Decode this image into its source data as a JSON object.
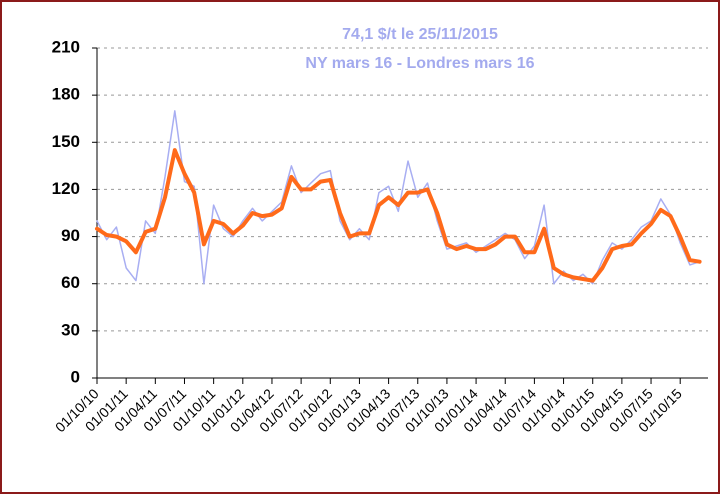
{
  "chart_data": {
    "type": "line",
    "title": "74,1 $/t le 25/11/2015",
    "subtitle": "NY mars 16 - Londres mars 16",
    "categories": [
      "01/10/10",
      null,
      null,
      "01/01/11",
      null,
      null,
      "01/04/11",
      null,
      null,
      "01/07/11",
      null,
      null,
      "01/10/11",
      null,
      null,
      "01/01/12",
      null,
      null,
      "01/04/12",
      null,
      null,
      "01/07/12",
      null,
      null,
      "01/10/12",
      null,
      null,
      "01/01/13",
      null,
      null,
      "01/04/13",
      null,
      null,
      "01/07/13",
      null,
      null,
      "01/10/13",
      null,
      null,
      "01/01/14",
      null,
      null,
      "01/04/14",
      null,
      null,
      "01/07/14",
      null,
      null,
      "01/10/14",
      null,
      null,
      "01/01/15",
      null,
      null,
      "01/04/15",
      null,
      null,
      "01/07/15",
      null,
      null,
      "01/10/15",
      null,
      null
    ],
    "series": [
      {
        "color": "#a8aef2",
        "values": [
          100,
          88,
          96,
          70,
          62,
          100,
          92,
          128,
          170,
          125,
          122,
          60,
          110,
          95,
          90,
          100,
          108,
          100,
          106,
          112,
          135,
          118,
          124,
          130,
          132,
          100,
          88,
          95,
          88,
          118,
          122,
          106,
          138,
          115,
          124,
          100,
          82,
          84,
          86,
          80,
          84,
          88,
          92,
          88,
          76,
          84,
          110,
          60,
          68,
          62,
          66,
          60,
          75,
          86,
          82,
          88,
          96,
          100,
          114,
          104,
          86,
          72,
          74
        ]
      },
      {
        "color": "#ff6a1a",
        "values": [
          95,
          91,
          90,
          87,
          80,
          93,
          95,
          115,
          145,
          130,
          118,
          85,
          100,
          98,
          92,
          97,
          105,
          103,
          104,
          108,
          128,
          120,
          120,
          125,
          126,
          105,
          90,
          92,
          92,
          110,
          115,
          110,
          118,
          118,
          120,
          105,
          85,
          82,
          84,
          82,
          82,
          85,
          90,
          90,
          80,
          80,
          95,
          70,
          66,
          64,
          63,
          62,
          70,
          82,
          84,
          85,
          92,
          98,
          107,
          103,
          90,
          75,
          74
        ]
      }
    ],
    "ylim": [
      0,
      210
    ],
    "yticks": [
      0,
      30,
      60,
      90,
      120,
      150,
      180,
      210
    ],
    "grid": true
  }
}
